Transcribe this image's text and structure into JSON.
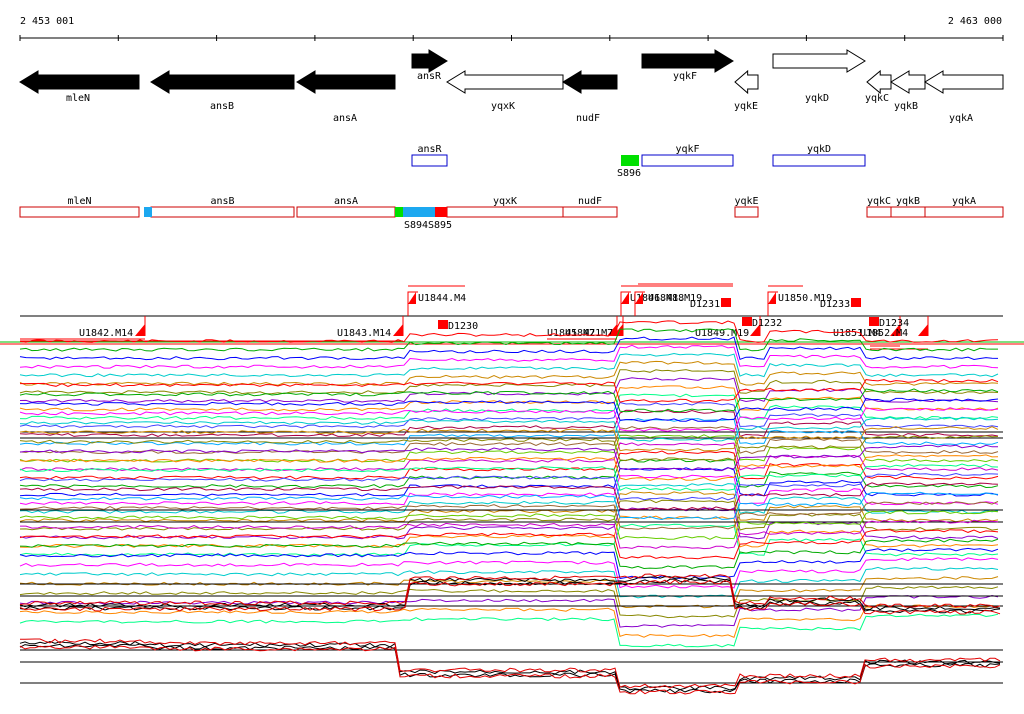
{
  "coords": {
    "start": "2 453 001",
    "end": "2 463 000"
  },
  "genes": [
    {
      "label": "mleN",
      "strand": "-"
    },
    {
      "label": "ansB",
      "strand": "-"
    },
    {
      "label": "ansA",
      "strand": "-"
    },
    {
      "label": "ansR",
      "strand": "+"
    },
    {
      "label": "yqxK",
      "strand": "-"
    },
    {
      "label": "nudF",
      "strand": "-"
    },
    {
      "label": "yqkF",
      "strand": "+"
    },
    {
      "label": "yqkE",
      "strand": "-"
    },
    {
      "label": "yqkD",
      "strand": "+"
    },
    {
      "label": "yqkC",
      "strand": "-"
    },
    {
      "label": "yqkB",
      "strand": "-"
    },
    {
      "label": "yqkA",
      "strand": "-"
    }
  ],
  "forward_boxes": [
    "ansR",
    "yqkF",
    "yqkD"
  ],
  "forward_segments": [
    "S896"
  ],
  "reverse_boxes": [
    "mleN",
    "ansB",
    "ansA",
    "yqxK",
    "nudF",
    "yqkE",
    "yqkC",
    "yqkB",
    "yqkA"
  ],
  "reverse_segments": [
    "S894",
    "S895"
  ],
  "upshifts_top": [
    "U1844.M4",
    "U1846.M18",
    "U1848.M19",
    "U1850.M19"
  ],
  "upshifts_bottom": [
    "U1842.M14",
    "U1843.M14",
    "U1845.M21",
    "U1847.M7",
    "U1849.M19",
    "U1851.M4",
    "U1852.M4"
  ],
  "downshifts": [
    "D1230",
    "D1231",
    "D1232",
    "D1233",
    "D1234"
  ],
  "colors": {
    "gene_filled": "#000000",
    "reverse_box": "#cc0000",
    "forward_box": "#0000cc",
    "segment_green": "#00e000",
    "segment_blue": "#1ca8f0",
    "segment_red": "#ff0000",
    "marker_red": "#ff0000",
    "profile_black": "#000000",
    "profile_red": "#e00000"
  }
}
